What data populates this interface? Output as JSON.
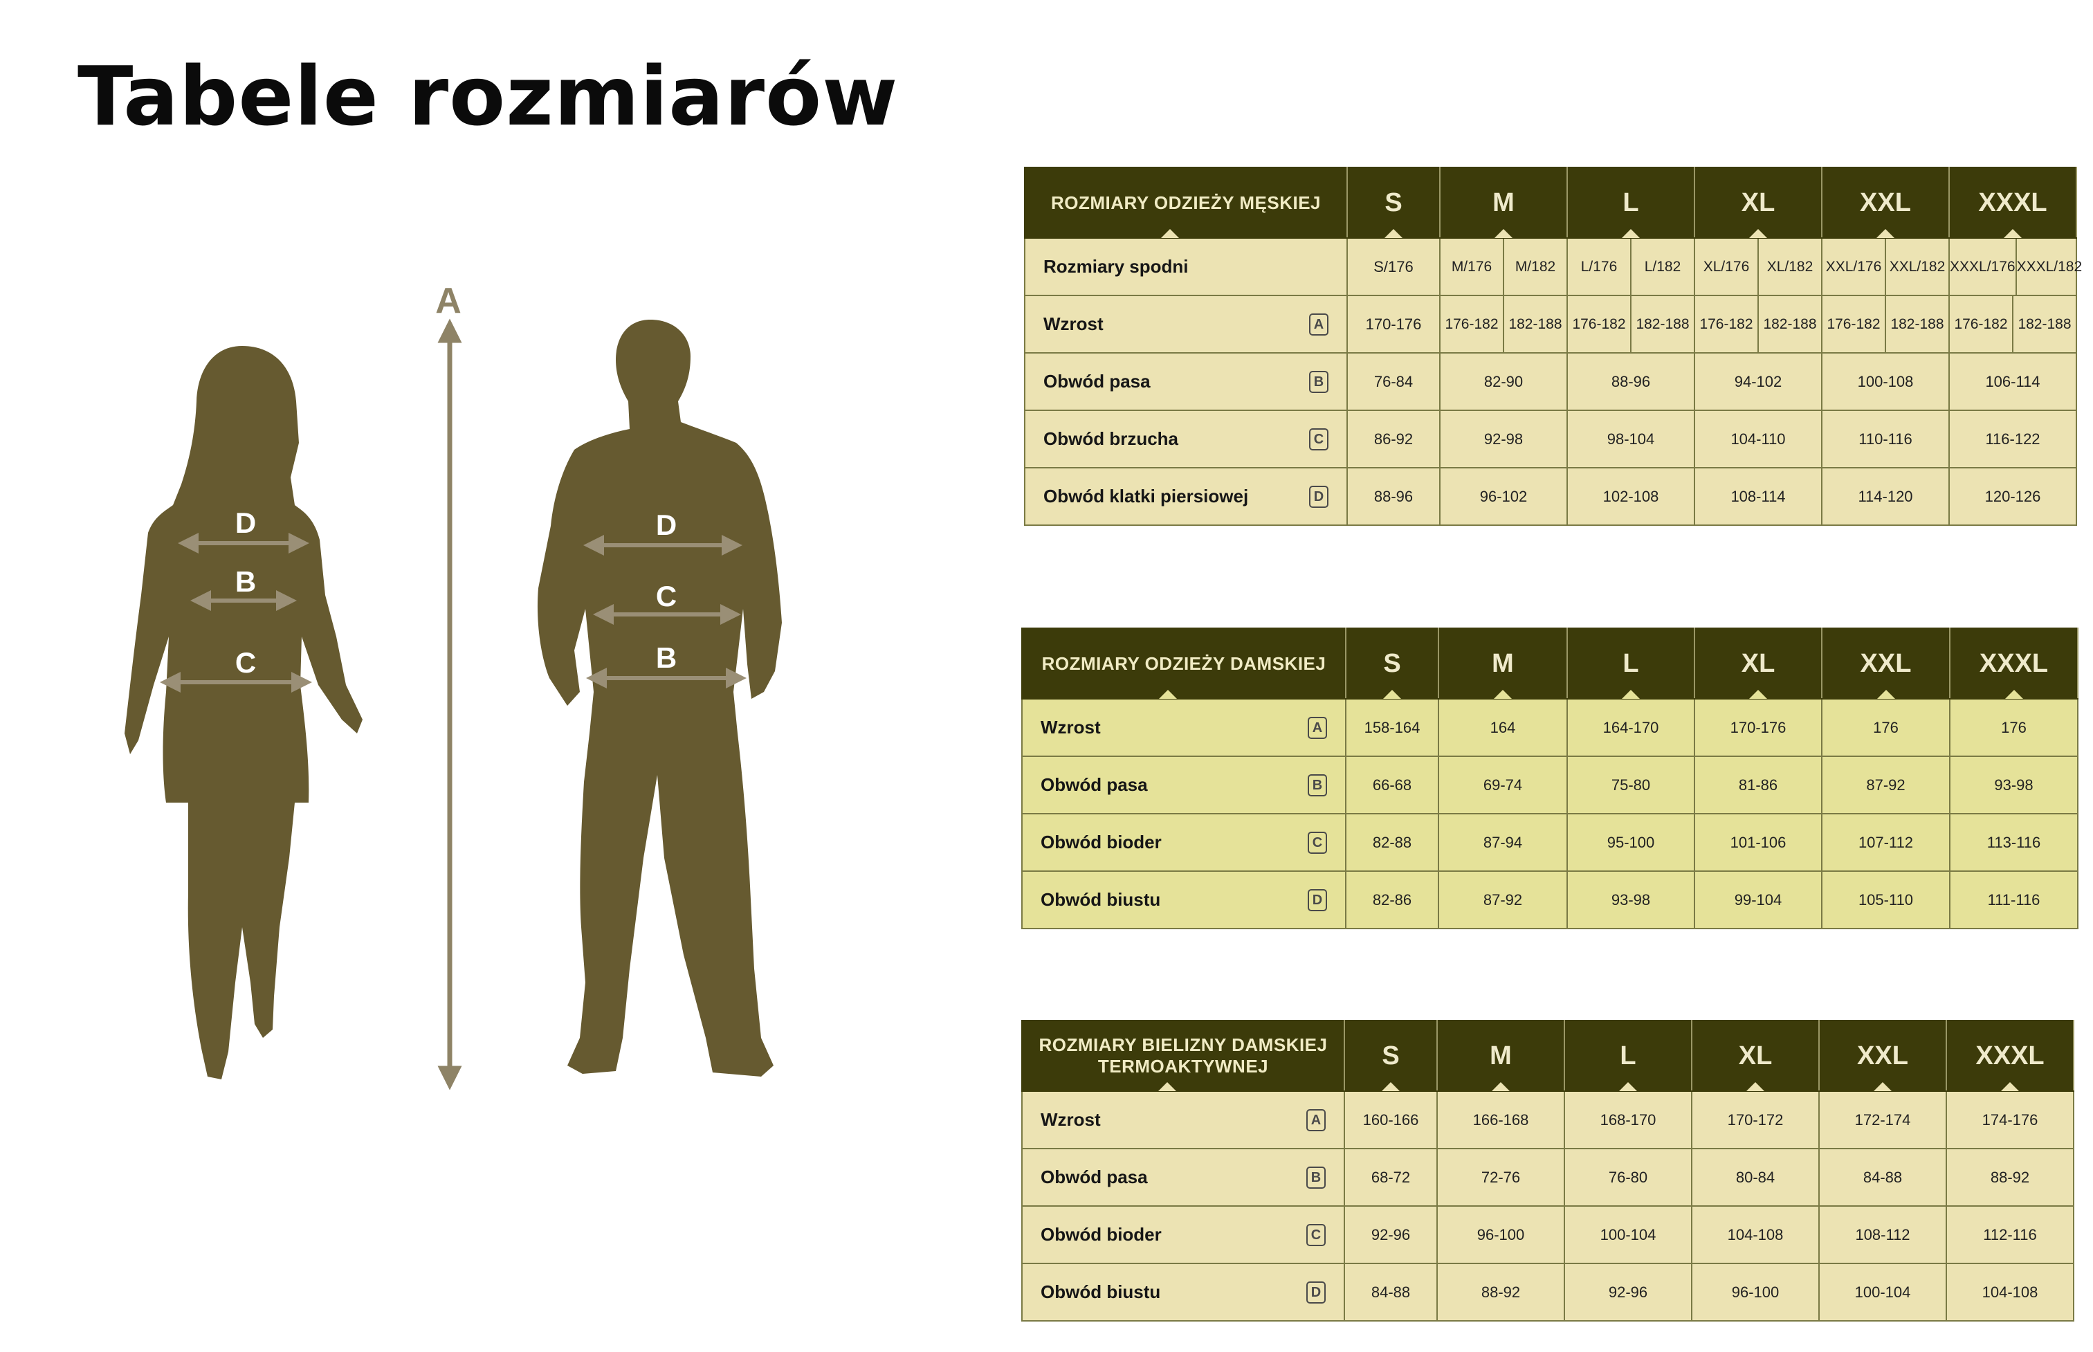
{
  "page": {
    "title": "Tabele rozmiarów"
  },
  "figures": {
    "labels": {
      "a": "A",
      "b": "B",
      "c": "C",
      "d": "D"
    }
  },
  "colors": {
    "header_bg": "#3c3b0a",
    "header_text": "#efeacb",
    "cell_beige": "#ece3b3",
    "cell_yellow": "#e5e299",
    "silhouette": "#665a30",
    "arrow": "#8e8366"
  },
  "sizes": [
    "S",
    "M",
    "L",
    "XL",
    "XXL",
    "XXXL"
  ],
  "men": {
    "title": "ROZMIARY ODZIEŻY MĘSKIEJ",
    "rows": [
      {
        "label": "Rozmiary spodni",
        "letter": "",
        "cells": [
          [
            "S/176"
          ],
          [
            "M/176",
            "M/182"
          ],
          [
            "L/176",
            "L/182"
          ],
          [
            "XL/176",
            "XL/182"
          ],
          [
            "XXL/176",
            "XXL/182"
          ],
          [
            "XXXL/176",
            "XXXL/182"
          ]
        ]
      },
      {
        "label": "Wzrost",
        "letter": "A",
        "cells": [
          [
            "170-176"
          ],
          [
            "176-182",
            "182-188"
          ],
          [
            "176-182",
            "182-188"
          ],
          [
            "176-182",
            "182-188"
          ],
          [
            "176-182",
            "182-188"
          ],
          [
            "176-182",
            "182-188"
          ]
        ]
      },
      {
        "label": "Obwód pasa",
        "letter": "B",
        "cells": [
          [
            "76-84"
          ],
          [
            "82-90"
          ],
          [
            "88-96"
          ],
          [
            "94-102"
          ],
          [
            "100-108"
          ],
          [
            "106-114"
          ]
        ]
      },
      {
        "label": "Obwód brzucha",
        "letter": "C",
        "cells": [
          [
            "86-92"
          ],
          [
            "92-98"
          ],
          [
            "98-104"
          ],
          [
            "104-110"
          ],
          [
            "110-116"
          ],
          [
            "116-122"
          ]
        ]
      },
      {
        "label": "Obwód klatki piersiowej",
        "letter": "D",
        "cells": [
          [
            "88-96"
          ],
          [
            "96-102"
          ],
          [
            "102-108"
          ],
          [
            "108-114"
          ],
          [
            "114-120"
          ],
          [
            "120-126"
          ]
        ]
      }
    ]
  },
  "women": {
    "title": "ROZMIARY ODZIEŻY DAMSKIEJ",
    "rows": [
      {
        "label": "Wzrost",
        "letter": "A",
        "cells": [
          [
            "158-164"
          ],
          [
            "164"
          ],
          [
            "164-170"
          ],
          [
            "170-176"
          ],
          [
            "176"
          ],
          [
            "176"
          ]
        ]
      },
      {
        "label": "Obwód pasa",
        "letter": "B",
        "cells": [
          [
            "66-68"
          ],
          [
            "69-74"
          ],
          [
            "75-80"
          ],
          [
            "81-86"
          ],
          [
            "87-92"
          ],
          [
            "93-98"
          ]
        ]
      },
      {
        "label": "Obwód bioder",
        "letter": "C",
        "cells": [
          [
            "82-88"
          ],
          [
            "87-94"
          ],
          [
            "95-100"
          ],
          [
            "101-106"
          ],
          [
            "107-112"
          ],
          [
            "113-116"
          ]
        ]
      },
      {
        "label": "Obwód biustu",
        "letter": "D",
        "cells": [
          [
            "82-86"
          ],
          [
            "87-92"
          ],
          [
            "93-98"
          ],
          [
            "99-104"
          ],
          [
            "105-110"
          ],
          [
            "111-116"
          ]
        ]
      }
    ]
  },
  "underwear": {
    "title": "ROZMIARY BIELIZNY DAMSKIEJ TERMOAKTYWNEJ",
    "rows": [
      {
        "label": "Wzrost",
        "letter": "A",
        "cells": [
          [
            "160-166"
          ],
          [
            "166-168"
          ],
          [
            "168-170"
          ],
          [
            "170-172"
          ],
          [
            "172-174"
          ],
          [
            "174-176"
          ]
        ]
      },
      {
        "label": "Obwód pasa",
        "letter": "B",
        "cells": [
          [
            "68-72"
          ],
          [
            "72-76"
          ],
          [
            "76-80"
          ],
          [
            "80-84"
          ],
          [
            "84-88"
          ],
          [
            "88-92"
          ]
        ]
      },
      {
        "label": "Obwód bioder",
        "letter": "C",
        "cells": [
          [
            "92-96"
          ],
          [
            "96-100"
          ],
          [
            "100-104"
          ],
          [
            "104-108"
          ],
          [
            "108-112"
          ],
          [
            "112-116"
          ]
        ]
      },
      {
        "label": "Obwód biustu",
        "letter": "D",
        "cells": [
          [
            "84-88"
          ],
          [
            "88-92"
          ],
          [
            "92-96"
          ],
          [
            "96-100"
          ],
          [
            "100-104"
          ],
          [
            "104-108"
          ]
        ]
      }
    ]
  }
}
